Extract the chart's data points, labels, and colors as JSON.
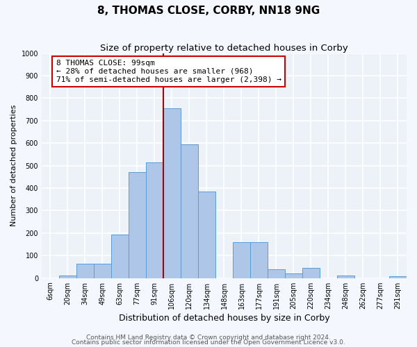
{
  "title": "8, THOMAS CLOSE, CORBY, NN18 9NG",
  "subtitle": "Size of property relative to detached houses in Corby",
  "xlabel": "Distribution of detached houses by size in Corby",
  "ylabel": "Number of detached properties",
  "bin_labels": [
    "6sqm",
    "20sqm",
    "34sqm",
    "49sqm",
    "63sqm",
    "77sqm",
    "91sqm",
    "106sqm",
    "120sqm",
    "134sqm",
    "148sqm",
    "163sqm",
    "177sqm",
    "191sqm",
    "205sqm",
    "220sqm",
    "234sqm",
    "248sqm",
    "262sqm",
    "277sqm",
    "291sqm"
  ],
  "bar_heights": [
    0,
    12,
    65,
    65,
    195,
    470,
    515,
    755,
    595,
    385,
    0,
    158,
    158,
    40,
    22,
    45,
    0,
    10,
    0,
    0,
    7
  ],
  "bar_color": "#aec6e8",
  "bar_edge_color": "#5b9bd5",
  "vline_color": "#aa0000",
  "annotation_text": "8 THOMAS CLOSE: 99sqm\n← 28% of detached houses are smaller (968)\n71% of semi-detached houses are larger (2,398) →",
  "annotation_box_color": "#ffffff",
  "annotation_box_edge": "#cc0000",
  "ylim": [
    0,
    1000
  ],
  "yticks": [
    0,
    100,
    200,
    300,
    400,
    500,
    600,
    700,
    800,
    900,
    1000
  ],
  "bg_color": "#edf2f9",
  "fig_bg_color": "#f4f7fd",
  "grid_color": "#ffffff",
  "footer1": "Contains HM Land Registry data © Crown copyright and database right 2024.",
  "footer2": "Contains public sector information licensed under the Open Government Licence v3.0.",
  "title_fontsize": 11,
  "subtitle_fontsize": 9.5,
  "xlabel_fontsize": 9,
  "ylabel_fontsize": 8,
  "tick_fontsize": 7,
  "annot_fontsize": 8,
  "footer_fontsize": 6.5
}
